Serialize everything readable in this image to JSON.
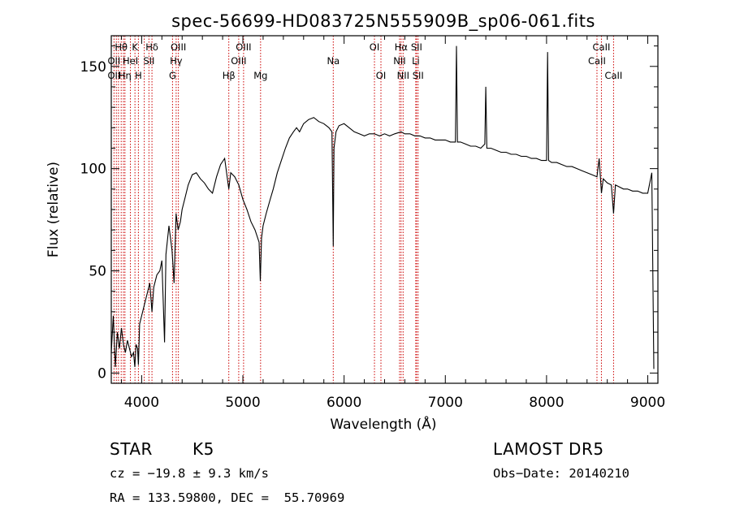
{
  "chart_data": {
    "type": "line",
    "title": "spec-56699-HD083725N555909B_sp06-061.fits",
    "xlabel": "Wavelength (Å)",
    "ylabel": "Flux (relative)",
    "xlim": [
      3700,
      9100
    ],
    "ylim": [
      -5,
      165
    ],
    "xticks": [
      4000,
      5000,
      6000,
      7000,
      8000,
      9000
    ],
    "yticks": [
      0,
      50,
      100,
      150
    ],
    "series": [
      {
        "line_color": "#000000",
        "x": [
          3700,
          3720,
          3740,
          3760,
          3780,
          3800,
          3820,
          3840,
          3860,
          3880,
          3900,
          3920,
          3933,
          3945,
          3960,
          3968,
          3980,
          4000,
          4020,
          4040,
          4060,
          4080,
          4102,
          4120,
          4150,
          4180,
          4200,
          4226,
          4240,
          4270,
          4300,
          4320,
          4340,
          4360,
          4383,
          4400,
          4430,
          4460,
          4500,
          4540,
          4580,
          4620,
          4660,
          4700,
          4740,
          4780,
          4820,
          4861,
          4880,
          4920,
          4960,
          5000,
          5040,
          5080,
          5120,
          5160,
          5172,
          5184,
          5200,
          5230,
          5270,
          5300,
          5340,
          5380,
          5420,
          5460,
          5500,
          5530,
          5560,
          5600,
          5650,
          5700,
          5750,
          5800,
          5850,
          5880,
          5893,
          5900,
          5920,
          5950,
          6000,
          6050,
          6100,
          6150,
          6200,
          6250,
          6300,
          6350,
          6400,
          6450,
          6500,
          6563,
          6600,
          6650,
          6700,
          6750,
          6800,
          6850,
          6900,
          6950,
          7000,
          7050,
          7100,
          7110,
          7120,
          7150,
          7200,
          7250,
          7300,
          7350,
          7390,
          7400,
          7410,
          7450,
          7500,
          7550,
          7600,
          7650,
          7700,
          7750,
          7800,
          7850,
          7900,
          7950,
          8000,
          8010,
          8020,
          8050,
          8100,
          8150,
          8200,
          8250,
          8300,
          8350,
          8400,
          8450,
          8498,
          8520,
          8542,
          8560,
          8600,
          8640,
          8662,
          8680,
          8720,
          8760,
          8800,
          8850,
          8900,
          8950,
          9000,
          9040,
          9060
        ],
        "y": [
          10,
          28,
          3,
          20,
          12,
          22,
          14,
          10,
          16,
          12,
          8,
          10,
          3,
          14,
          12,
          4,
          24,
          28,
          32,
          36,
          40,
          44,
          30,
          42,
          48,
          50,
          55,
          15,
          58,
          72,
          60,
          44,
          78,
          70,
          74,
          80,
          86,
          92,
          97,
          98,
          95,
          93,
          90,
          88,
          96,
          102,
          105,
          90,
          98,
          96,
          92,
          85,
          80,
          74,
          70,
          64,
          45,
          66,
          72,
          78,
          85,
          90,
          98,
          104,
          110,
          115,
          118,
          120,
          118,
          122,
          124,
          125,
          123,
          122,
          120,
          118,
          62,
          110,
          118,
          121,
          122,
          120,
          118,
          117,
          116,
          117,
          117,
          116,
          117,
          116,
          117,
          118,
          117,
          117,
          116,
          116,
          115,
          115,
          114,
          114,
          114,
          113,
          113,
          160,
          113,
          113,
          112,
          111,
          111,
          110,
          112,
          140,
          110,
          110,
          109,
          108,
          108,
          107,
          107,
          106,
          106,
          105,
          105,
          104,
          104,
          157,
          104,
          103,
          103,
          102,
          101,
          101,
          100,
          99,
          98,
          97,
          96,
          105,
          88,
          95,
          93,
          92,
          78,
          92,
          91,
          90,
          90,
          89,
          89,
          88,
          88,
          98,
          2
        ]
      }
    ],
    "line_labels": [
      {
        "text": "Hθ",
        "wl": 3798,
        "row": 0
      },
      {
        "text": "K",
        "wl": 3934,
        "row": 0
      },
      {
        "text": "Hδ",
        "wl": 4102,
        "row": 0
      },
      {
        "text": "OIII",
        "wl": 4363,
        "row": 0
      },
      {
        "text": "OIII",
        "wl": 5007,
        "row": 0
      },
      {
        "text": "OI",
        "wl": 6300,
        "row": 0
      },
      {
        "text": "Hα",
        "wl": 6563,
        "row": 0
      },
      {
        "text": "SII",
        "wl": 6716,
        "row": 0
      },
      {
        "text": "CaII",
        "wl": 8542,
        "row": 0
      },
      {
        "text": "OII",
        "wl": 3727,
        "row": 1
      },
      {
        "text": "HeI",
        "wl": 3889,
        "row": 1
      },
      {
        "text": "SII",
        "wl": 4072,
        "row": 1
      },
      {
        "text": "Hγ",
        "wl": 4341,
        "row": 1
      },
      {
        "text": "OIII",
        "wl": 4959,
        "row": 1
      },
      {
        "text": "Na",
        "wl": 5893,
        "row": 1
      },
      {
        "text": "NII",
        "wl": 6548,
        "row": 1
      },
      {
        "text": "Li",
        "wl": 6708,
        "row": 1
      },
      {
        "text": "CaII",
        "wl": 8498,
        "row": 1
      },
      {
        "text": "OII",
        "wl": 3727,
        "row": 2
      },
      {
        "text": "Hη",
        "wl": 3835,
        "row": 2
      },
      {
        "text": "H",
        "wl": 3968,
        "row": 2
      },
      {
        "text": "G",
        "wl": 4305,
        "row": 2
      },
      {
        "text": "Hβ",
        "wl": 4861,
        "row": 2
      },
      {
        "text": "Mg",
        "wl": 5175,
        "row": 2
      },
      {
        "text": "OI",
        "wl": 6364,
        "row": 2
      },
      {
        "text": "NII",
        "wl": 6583,
        "row": 2
      },
      {
        "text": "SII",
        "wl": 6731,
        "row": 2
      },
      {
        "text": "CaII",
        "wl": 8662,
        "row": 2
      }
    ],
    "line_marks": [
      3727,
      3750,
      3771,
      3798,
      3820,
      3835,
      3889,
      3934,
      3968,
      4026,
      4072,
      4102,
      4305,
      4341,
      4363,
      4861,
      4959,
      5007,
      5175,
      5893,
      6300,
      6364,
      6548,
      6563,
      6583,
      6708,
      6716,
      6731,
      8498,
      8542,
      8662
    ],
    "line_mark_color": "#cc0000"
  },
  "info": {
    "class": "STAR",
    "subclass": "K5",
    "survey": "LAMOST DR5",
    "cz": "cz = −19.8 ± 9.3 km/s",
    "obs_date": "Obs−Date: 20140210",
    "coords": "RA = 133.59800, DEC =  55.70969"
  }
}
